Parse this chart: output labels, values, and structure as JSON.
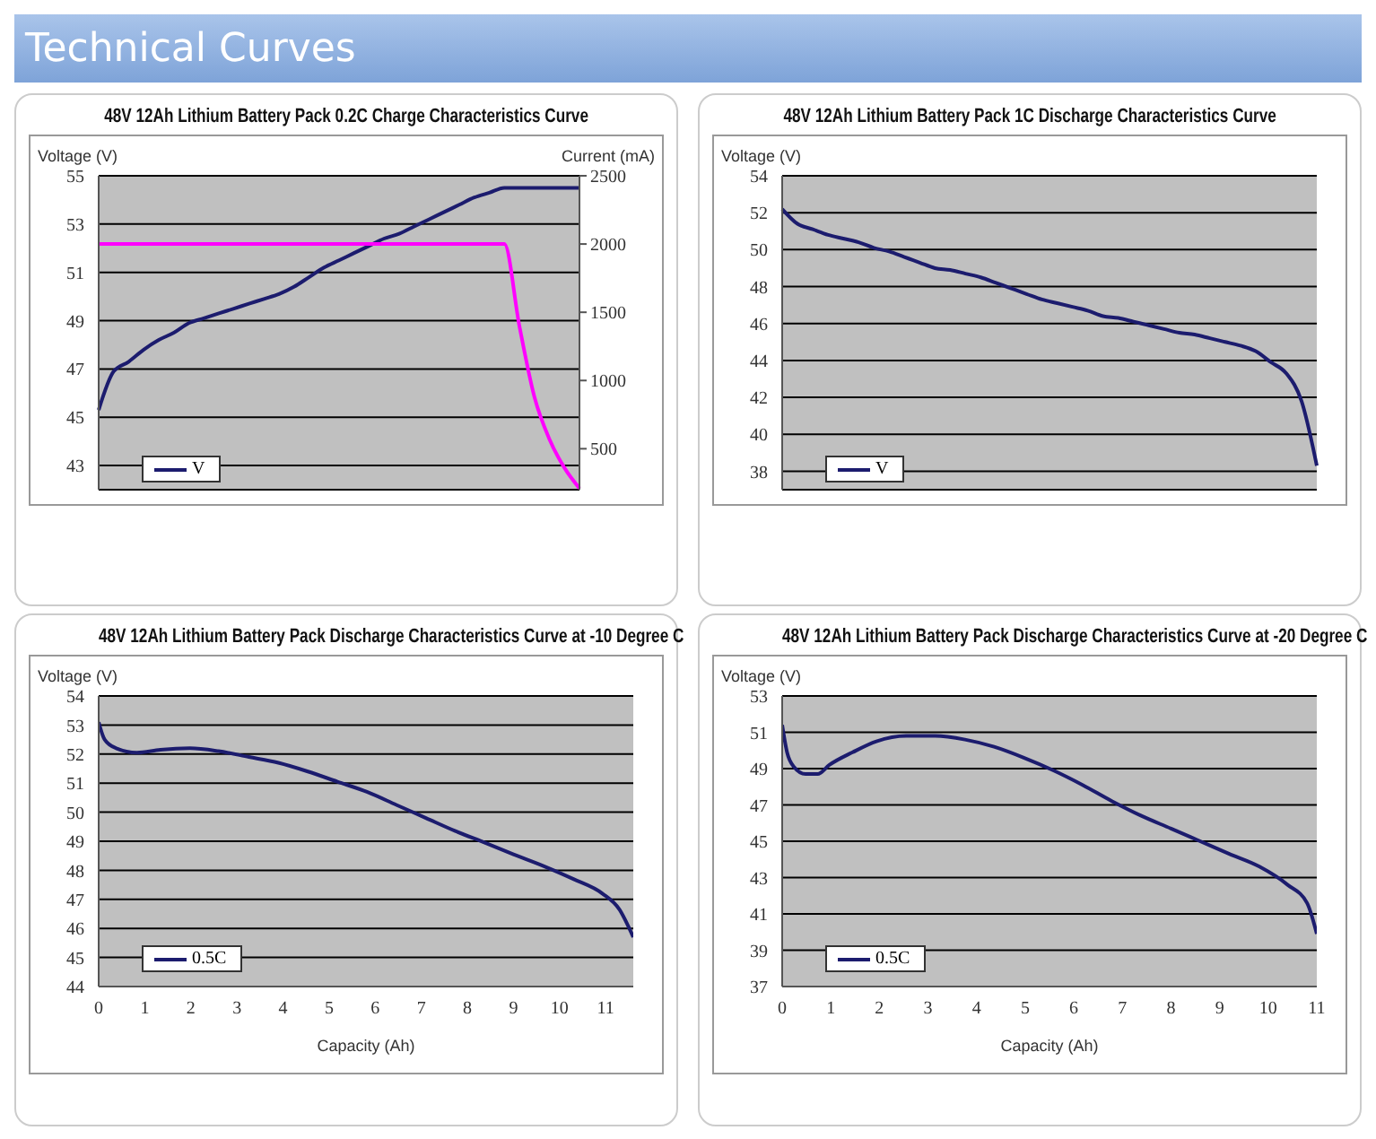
{
  "chart_data": [
    {
      "type": "other",
      "title": "Technical Curves"
    },
    {
      "type": "line",
      "title": "48V 12Ah Lithium Battery Pack 0.2C Charge Characteristics Curve",
      "ylabel": "Voltage (V)",
      "y2label": "Current (mA)",
      "categories": [
        null,
        null,
        null,
        null,
        null,
        null,
        null,
        null,
        null,
        null,
        null,
        null,
        null,
        null,
        null,
        null,
        null,
        null,
        null,
        null,
        null,
        null,
        null,
        null,
        null,
        null,
        null,
        null,
        null,
        null,
        null,
        null,
        null
      ],
      "series": [
        {
          "name": "V",
          "color": "#1c1c6e",
          "values": [
            45.3,
            46.9,
            47.3,
            47.8,
            48.2,
            48.5,
            48.9,
            49.1,
            49.3,
            49.5,
            49.7,
            49.9,
            50.1,
            50.4,
            50.8,
            51.2,
            51.5,
            51.8,
            52.1,
            52.4,
            52.6,
            52.9,
            53.2,
            53.5,
            53.8,
            54.1,
            54.3,
            54.5,
            54.5,
            54.5,
            54.5,
            54.5,
            54.5
          ]
        },
        {
          "color": "#ff00ff",
          "axis": "y2",
          "values": [
            2000,
            2000,
            2000,
            2000,
            2000,
            2000,
            2000,
            2000,
            2000,
            2000,
            2000,
            2000,
            2000,
            2000,
            2000,
            2000,
            2000,
            2000,
            2000,
            2000,
            2000,
            2000,
            2000,
            2000,
            2000,
            2000,
            2000,
            2000,
            1400,
            880,
            570,
            360,
            210
          ]
        }
      ],
      "ylim": [
        42,
        55
      ],
      "yticks": [
        43,
        45,
        47,
        49,
        51,
        53,
        55
      ],
      "y2lim": [
        200,
        2500
      ],
      "y2ticks": [
        500,
        1000,
        1500,
        2000,
        2500
      ],
      "grid": "y",
      "legend": "bottom left",
      "tick_labels": "y"
    },
    {
      "type": "line",
      "title": "48V 12Ah Lithium Battery Pack 1C Discharge Characteristics Curve",
      "ylabel": "Voltage (V)",
      "categories": [
        null,
        null,
        null,
        null,
        null,
        null,
        null,
        null,
        null,
        null,
        null,
        null,
        null,
        null,
        null,
        null,
        null,
        null,
        null,
        null,
        null,
        null,
        null,
        null,
        null,
        null,
        null,
        null,
        null,
        null,
        null,
        null,
        null,
        null,
        null,
        null
      ],
      "series": [
        {
          "name": "V",
          "color": "#1c1c6e",
          "values": [
            52.2,
            51.4,
            51.1,
            50.8,
            50.6,
            50.4,
            50.1,
            49.9,
            49.6,
            49.3,
            49.0,
            48.9,
            48.7,
            48.5,
            48.2,
            47.9,
            47.6,
            47.3,
            47.1,
            46.9,
            46.7,
            46.4,
            46.3,
            46.1,
            45.9,
            45.7,
            45.5,
            45.4,
            45.2,
            45.0,
            44.8,
            44.5,
            43.9,
            43.3,
            41.8,
            38.3
          ]
        }
      ],
      "ylim": [
        37,
        54
      ],
      "yticks": [
        38,
        40,
        42,
        44,
        46,
        48,
        50,
        52,
        54
      ],
      "grid": "y",
      "legend": "bottom left",
      "tick_labels": "y"
    },
    {
      "type": "line",
      "title": "48V 12Ah Lithium Battery Pack Discharge Characteristics Curve at -10 Degree C",
      "ylabel": "Voltage (V)",
      "xlabel": "Capacity (Ah)",
      "x": [
        0,
        0.13,
        0.38,
        0.83,
        1.34,
        1.98,
        2.6,
        3.26,
        3.9,
        4.54,
        5.18,
        5.82,
        6.46,
        7.1,
        7.74,
        8.38,
        9.0,
        9.65,
        10.3,
        10.93,
        11.3,
        11.6
      ],
      "series": [
        {
          "name": "0.5C",
          "color": "#1c1c6e",
          "values": [
            53.1,
            52.5,
            52.2,
            52.05,
            52.15,
            52.2,
            52.1,
            51.9,
            51.7,
            51.4,
            51.05,
            50.7,
            50.25,
            49.8,
            49.35,
            48.95,
            48.55,
            48.15,
            47.7,
            47.2,
            46.65,
            45.7
          ]
        }
      ],
      "xlim": [
        0,
        11.6
      ],
      "xticks": [
        0,
        1,
        2,
        3,
        4,
        5,
        6,
        7,
        8,
        9,
        10,
        11
      ],
      "ylim": [
        44,
        54
      ],
      "yticks": [
        44,
        45,
        46,
        47,
        48,
        49,
        50,
        51,
        52,
        53,
        54
      ],
      "grid": "y",
      "legend": "bottom left"
    },
    {
      "type": "line",
      "title": "48V 12Ah Lithium Battery Pack Discharge Characteristics Curve at -20 Degree C",
      "ylabel": "Voltage (V)",
      "xlabel": "Capacity (Ah)",
      "x": [
        0,
        0.1,
        0.24,
        0.48,
        0.73,
        0.97,
        1.45,
        1.94,
        2.55,
        3.15,
        3.76,
        4.36,
        4.97,
        5.58,
        6.18,
        6.79,
        7.39,
        8.0,
        8.6,
        9.2,
        9.82,
        10.4,
        10.8,
        11
      ],
      "series": [
        {
          "name": "0.5C",
          "color": "#1c1c6e",
          "values": [
            51.4,
            49.9,
            49.1,
            48.7,
            48.7,
            49.2,
            49.9,
            50.5,
            50.8,
            50.8,
            50.6,
            50.2,
            49.6,
            48.9,
            48.1,
            47.2,
            46.4,
            45.7,
            45.0,
            44.3,
            43.6,
            42.6,
            41.6,
            39.9
          ]
        }
      ],
      "xlim": [
        0,
        11
      ],
      "xticks": [
        0,
        1,
        2,
        3,
        4,
        5,
        6,
        7,
        8,
        9,
        10,
        11
      ],
      "ylim": [
        37,
        53
      ],
      "yticks": [
        37,
        39,
        41,
        43,
        45,
        47,
        49,
        51,
        53
      ],
      "grid": "y",
      "legend": "bottom left"
    }
  ]
}
